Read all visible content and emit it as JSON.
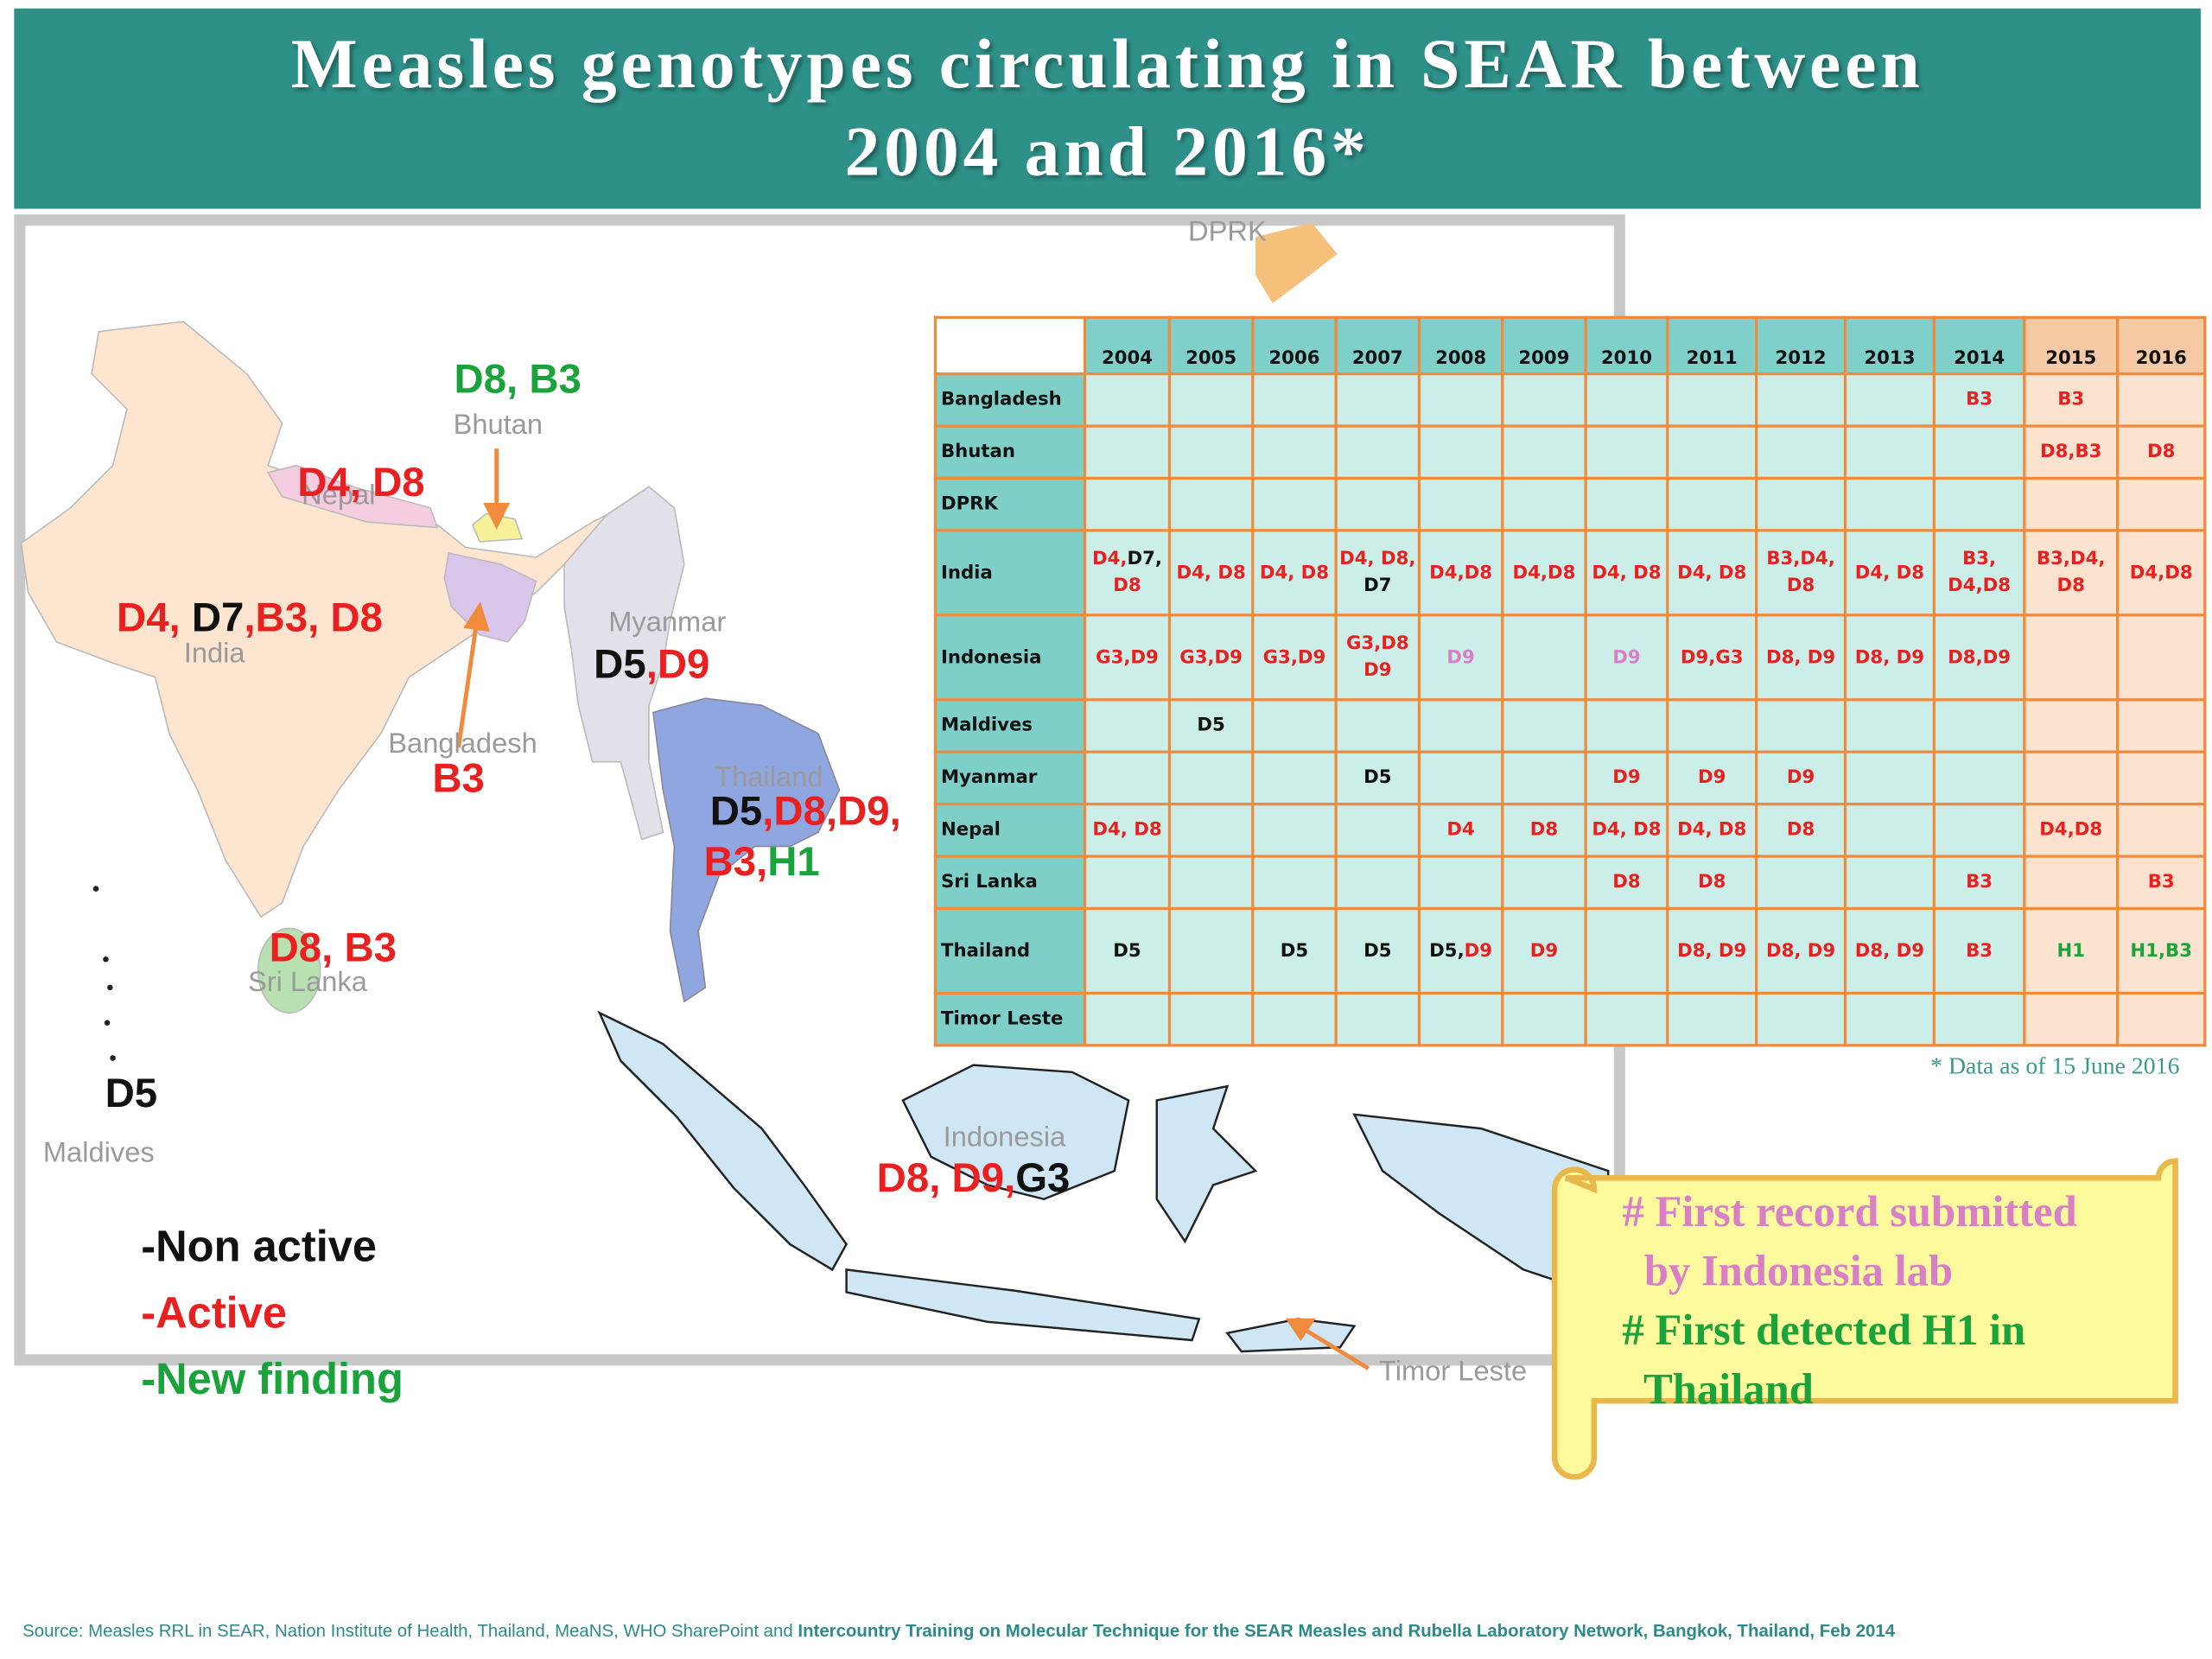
{
  "header": {
    "title_lines": [
      "Measles genotypes circulating in SEAR between",
      "2004 and 2016*"
    ]
  },
  "status_colors": {
    "inactive": "#111111",
    "active": "#e8201f",
    "new": "#1aa33a",
    "first_record": "#d97fc6"
  },
  "map": {
    "countries": [
      {
        "name": "DPRK",
        "genotype_lines": []
      },
      {
        "name": "Bhutan",
        "genotype_lines": [
          [
            {
              "text": "D8, B3",
              "status": "new"
            }
          ]
        ]
      },
      {
        "name": "Nepal",
        "genotype_lines": [
          [
            {
              "text": "D4, D8",
              "status": "active"
            }
          ]
        ]
      },
      {
        "name": "India",
        "genotype_lines": [
          [
            {
              "text": "D4, ",
              "status": "active"
            },
            {
              "text": "D7",
              "status": "inactive"
            },
            {
              "text": ",B3, D8",
              "status": "active"
            }
          ]
        ]
      },
      {
        "name": "Myanmar",
        "genotype_lines": [
          [
            {
              "text": "D5",
              "status": "inactive"
            },
            {
              "text": ",D9",
              "status": "active"
            }
          ]
        ]
      },
      {
        "name": "Bangladesh",
        "genotype_lines": [
          [
            {
              "text": "B3",
              "status": "active"
            }
          ]
        ]
      },
      {
        "name": "Thailand",
        "genotype_lines": [
          [
            {
              "text": "D5",
              "status": "inactive"
            },
            {
              "text": ",D8,D9,",
              "status": "active"
            }
          ],
          [
            {
              "text": "B3,",
              "status": "active"
            },
            {
              "text": "H1",
              "status": "new"
            }
          ]
        ]
      },
      {
        "name": "Sri Lanka",
        "genotype_lines": [
          [
            {
              "text": "D8, B3",
              "status": "active"
            }
          ]
        ]
      },
      {
        "name": "Maldives",
        "genotype_lines": [
          [
            {
              "text": "D5",
              "status": "inactive"
            }
          ]
        ]
      },
      {
        "name": "Indonesia",
        "genotype_lines": [
          [
            {
              "text": "D8, D9,",
              "status": "active"
            },
            {
              "text": "G3",
              "status": "inactive"
            }
          ]
        ]
      },
      {
        "name": "Timor Leste",
        "genotype_lines": []
      }
    ]
  },
  "table": {
    "years": [
      "2004",
      "2005",
      "2006",
      "2007",
      "2008",
      "2009",
      "2010",
      "2011",
      "2012",
      "2013",
      "2014",
      "2015",
      "2016"
    ],
    "rows": [
      {
        "country": "Bangladesh",
        "cells": [
          [],
          [],
          [],
          [],
          [],
          [],
          [],
          [],
          [],
          [],
          [
            {
              "text": "B3",
              "status": "active"
            }
          ],
          [
            {
              "text": "B3",
              "status": "active"
            }
          ],
          []
        ]
      },
      {
        "country": "Bhutan",
        "cells": [
          [],
          [],
          [],
          [],
          [],
          [],
          [],
          [],
          [],
          [],
          [],
          [
            {
              "text": "D8,B3",
              "status": "active"
            }
          ],
          [
            {
              "text": "D8",
              "status": "active"
            }
          ]
        ]
      },
      {
        "country": "DPRK",
        "cells": [
          [],
          [],
          [],
          [],
          [],
          [],
          [],
          [],
          [],
          [],
          [],
          [],
          []
        ]
      },
      {
        "country": "India",
        "cells": [
          [
            {
              "text": "D4,",
              "status": "active"
            },
            {
              "text": "D7,",
              "status": "inactive"
            },
            {
              "text": "D8",
              "status": "active"
            }
          ],
          [
            {
              "text": "D4, D8",
              "status": "active"
            }
          ],
          [
            {
              "text": "D4, D8",
              "status": "active"
            }
          ],
          [
            {
              "text": "D4, D8,",
              "status": "active"
            },
            {
              "text": " D7",
              "status": "inactive"
            }
          ],
          [
            {
              "text": "D4,D8",
              "status": "active"
            }
          ],
          [
            {
              "text": "D4,D8",
              "status": "active"
            }
          ],
          [
            {
              "text": "D4, D8",
              "status": "active"
            }
          ],
          [
            {
              "text": "D4, D8",
              "status": "active"
            }
          ],
          [
            {
              "text": "B3,D4, D8",
              "status": "active"
            }
          ],
          [
            {
              "text": "D4, D8",
              "status": "active"
            }
          ],
          [
            {
              "text": "B3, D4,D8",
              "status": "active"
            }
          ],
          [
            {
              "text": "B3,D4, D8",
              "status": "active"
            }
          ],
          [
            {
              "text": "D4,D8",
              "status": "active"
            }
          ]
        ]
      },
      {
        "country": "Indonesia",
        "cells": [
          [
            {
              "text": "G3,D9",
              "status": "active"
            }
          ],
          [
            {
              "text": "G3,D9",
              "status": "active"
            }
          ],
          [
            {
              "text": "G3,D9",
              "status": "active"
            }
          ],
          [
            {
              "text": "G3,D8 D9",
              "status": "active"
            }
          ],
          [
            {
              "text": "D9",
              "status": "first_record"
            }
          ],
          [],
          [
            {
              "text": "D9",
              "status": "first_record"
            }
          ],
          [
            {
              "text": "D9,G3",
              "status": "active"
            }
          ],
          [
            {
              "text": "D8, D9",
              "status": "active"
            }
          ],
          [
            {
              "text": "D8, D9",
              "status": "active"
            }
          ],
          [
            {
              "text": "D8,D9",
              "status": "active"
            }
          ],
          [],
          []
        ]
      },
      {
        "country": "Maldives",
        "cells": [
          [],
          [
            {
              "text": "D5",
              "status": "inactive"
            }
          ],
          [],
          [],
          [],
          [],
          [],
          [],
          [],
          [],
          [],
          [],
          []
        ]
      },
      {
        "country": "Myanmar",
        "cells": [
          [],
          [],
          [],
          [
            {
              "text": "D5",
              "status": "inactive"
            }
          ],
          [],
          [],
          [
            {
              "text": "D9",
              "status": "active"
            }
          ],
          [
            {
              "text": "D9",
              "status": "active"
            }
          ],
          [
            {
              "text": "D9",
              "status": "active"
            }
          ],
          [],
          [],
          [],
          []
        ]
      },
      {
        "country": "Nepal",
        "cells": [
          [
            {
              "text": "D4, D8",
              "status": "active"
            }
          ],
          [],
          [],
          [],
          [
            {
              "text": "D4",
              "status": "active"
            }
          ],
          [
            {
              "text": "D8",
              "status": "active"
            }
          ],
          [
            {
              "text": "D4, D8",
              "status": "active"
            }
          ],
          [
            {
              "text": "D4, D8",
              "status": "active"
            }
          ],
          [
            {
              "text": "D8",
              "status": "active"
            }
          ],
          [],
          [],
          [
            {
              "text": "D4,D8",
              "status": "active"
            }
          ],
          []
        ]
      },
      {
        "country": "Sri Lanka",
        "cells": [
          [],
          [],
          [],
          [],
          [],
          [],
          [
            {
              "text": "D8",
              "status": "active"
            }
          ],
          [
            {
              "text": "D8",
              "status": "active"
            }
          ],
          [],
          [],
          [
            {
              "text": "B3",
              "status": "active"
            }
          ],
          [],
          [
            {
              "text": "B3",
              "status": "active"
            }
          ]
        ]
      },
      {
        "country": "Thailand",
        "cells": [
          [
            {
              "text": "D5",
              "status": "inactive"
            }
          ],
          [],
          [
            {
              "text": "D5",
              "status": "inactive"
            }
          ],
          [
            {
              "text": "D5",
              "status": "inactive"
            }
          ],
          [
            {
              "text": "D5,",
              "status": "inactive"
            },
            {
              "text": " D9",
              "status": "active"
            }
          ],
          [
            {
              "text": "D9",
              "status": "active"
            }
          ],
          [],
          [
            {
              "text": "D8, D9",
              "status": "active"
            }
          ],
          [
            {
              "text": "D8, D9",
              "status": "active"
            }
          ],
          [
            {
              "text": "D8, D9",
              "status": "active"
            }
          ],
          [
            {
              "text": "B3",
              "status": "active"
            }
          ],
          [
            {
              "text": "H1",
              "status": "new"
            }
          ],
          [
            {
              "text": "H1,B3",
              "status": "new"
            }
          ]
        ]
      },
      {
        "country": "Timor Leste",
        "cells": [
          [],
          [],
          [],
          [],
          [],
          [],
          [],
          [],
          [],
          [],
          [],
          [],
          []
        ]
      }
    ]
  },
  "footnote": "* Data as of 15 June 2016",
  "legend": [
    {
      "text": "-Non active",
      "status": "inactive"
    },
    {
      "text": "-Active",
      "status": "active"
    },
    {
      "text": "-New finding",
      "status": "new"
    }
  ],
  "scroll_note": [
    {
      "text": "# First record submitted",
      "status": "first_record"
    },
    {
      "text": "  by Indonesia lab",
      "status": "first_record"
    },
    {
      "text": "# First detected H1 in",
      "status": "new"
    },
    {
      "text": "  Thailand",
      "status": "new"
    }
  ],
  "source": {
    "plain": "Source: Measles RRL in SEAR, Nation Institute of Health, Thailand, MeaNS, WHO SharePoint and ",
    "bold": "Intercountry Training on Molecular Technique for the SEAR Measles and Rubella Laboratory Network, Bangkok, Thailand, Feb 2014"
  }
}
